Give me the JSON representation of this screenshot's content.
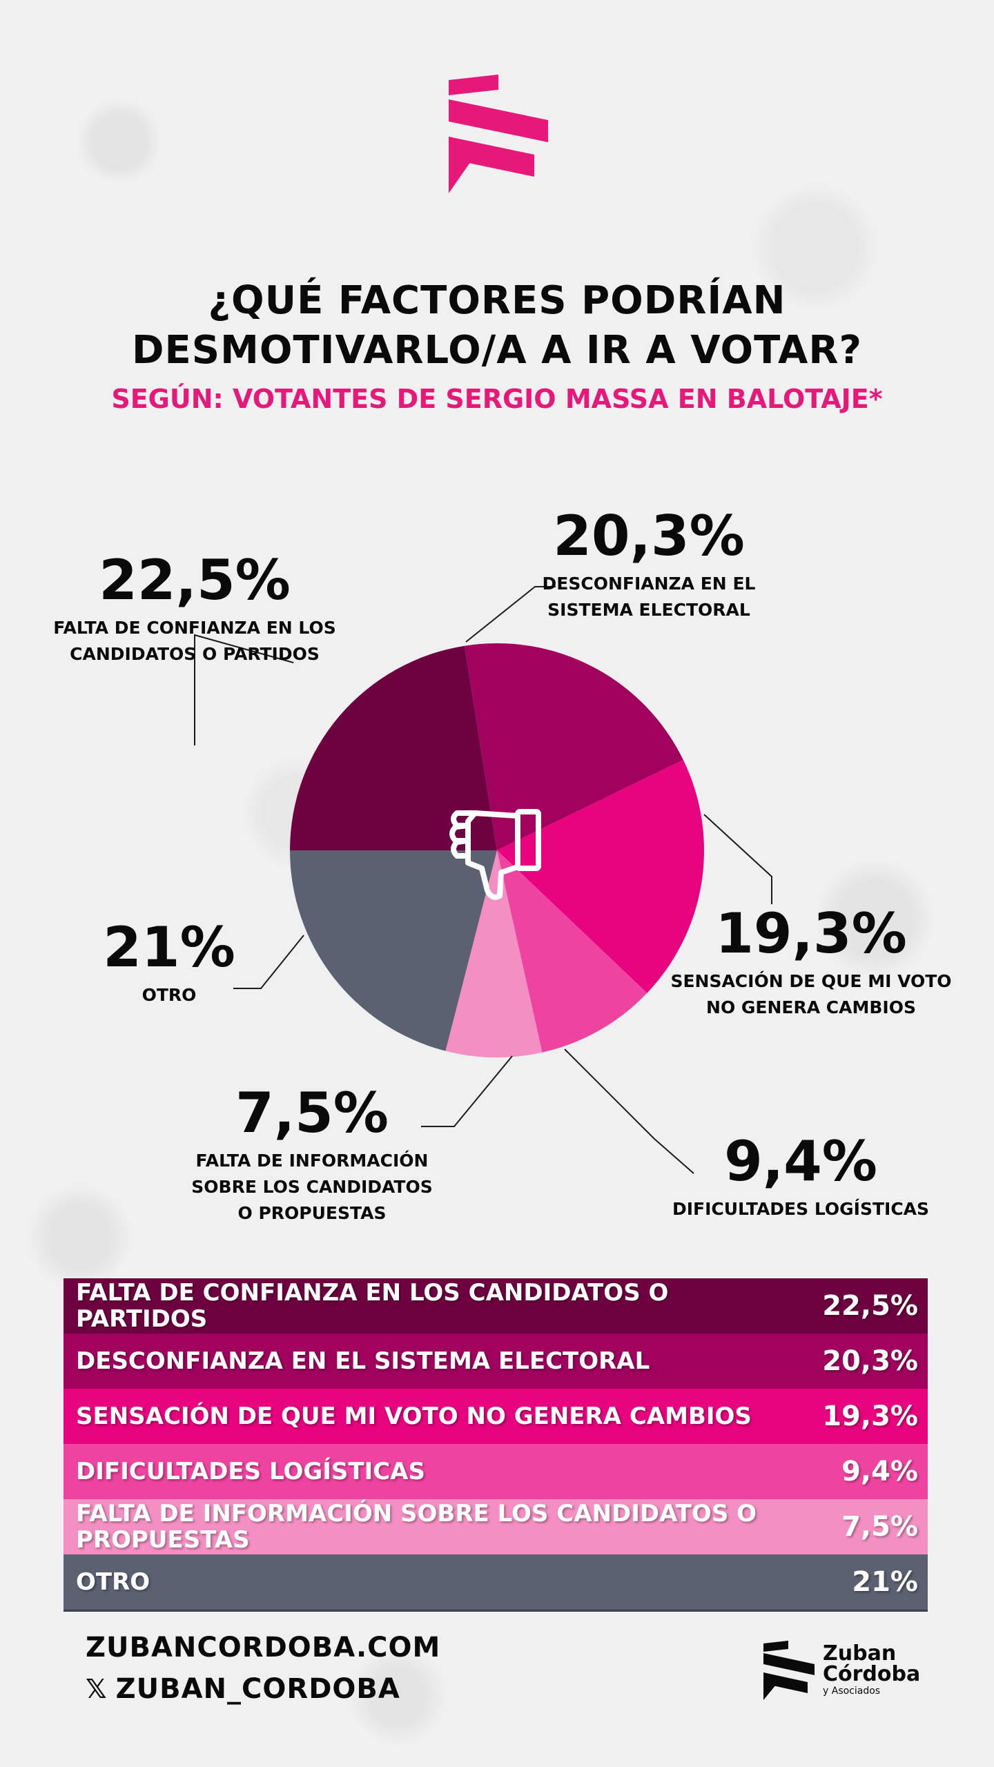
{
  "title_line1": "¿QUÉ FACTORES PODRÍAN",
  "title_line2": "DESMOTIVARLO/A A IR A VOTAR?",
  "subtitle": "SEGÚN: VOTANTES DE SERGIO MASSA EN BALOTAJE*",
  "colors": {
    "brand_pink": "#e6197a",
    "text": "#0a0a0a"
  },
  "icons": {
    "center": "thumbs-down-icon",
    "footer_x": "x-logo-icon"
  },
  "chart_data": {
    "type": "pie",
    "slices": [
      {
        "label_lines": [
          "FALTA DE CONFIANZA EN LOS",
          "CANDIDATOS O PARTIDOS"
        ],
        "value": 22.5,
        "display": "22,5%",
        "color": "#6e0140"
      },
      {
        "label_lines": [
          "DESCONFIANZA EN EL",
          "SISTEMA ELECTORAL"
        ],
        "value": 20.3,
        "display": "20,3%",
        "color": "#a0025e"
      },
      {
        "label_lines": [
          "SENSACIÓN DE QUE MI VOTO",
          "NO GENERA CAMBIOS"
        ],
        "value": 19.3,
        "display": "19,3%",
        "color": "#e8037f"
      },
      {
        "label_lines": [
          "DIFICULTADES LOGÍSTICAS"
        ],
        "value": 9.4,
        "display": "9,4%",
        "color": "#ef43a0"
      },
      {
        "label_lines": [
          "FALTA DE INFORMACIÓN",
          "SOBRE LOS CANDIDATOS",
          "O PROPUESTAS"
        ],
        "value": 7.5,
        "display": "7,5%",
        "color": "#f48fc3"
      },
      {
        "label_lines": [
          "OTRO"
        ],
        "value": 21,
        "display": "21%",
        "color": "#5c6172"
      }
    ]
  },
  "table": {
    "rows": [
      {
        "label": "FALTA DE CONFIANZA EN LOS CANDIDATOS O PARTIDOS",
        "value": "22,5%",
        "color": "#6e0140"
      },
      {
        "label": "DESCONFIANZA EN EL SISTEMA ELECTORAL",
        "value": "20,3%",
        "color": "#a0025e"
      },
      {
        "label": "SENSACIÓN DE QUE MI VOTO NO GENERA CAMBIOS",
        "value": "19,3%",
        "color": "#e8037f"
      },
      {
        "label": "DIFICULTADES LOGÍSTICAS",
        "value": "9,4%",
        "color": "#ef43a0"
      },
      {
        "label": "FALTA DE INFORMACIÓN SOBRE LOS CANDIDATOS O PROPUESTAS",
        "value": "7,5%",
        "color": "#f48fc3"
      },
      {
        "label": "OTRO",
        "value": "21%",
        "color": "#5c6172"
      }
    ]
  },
  "footer": {
    "website": "ZUBANCORDOBA.COM",
    "x_handle": "ZUBAN_CORDOBA",
    "x_symbol": "𝕏",
    "brand_line1": "Zuban",
    "brand_line2": "Córdoba",
    "brand_line3": "y Asociados"
  }
}
